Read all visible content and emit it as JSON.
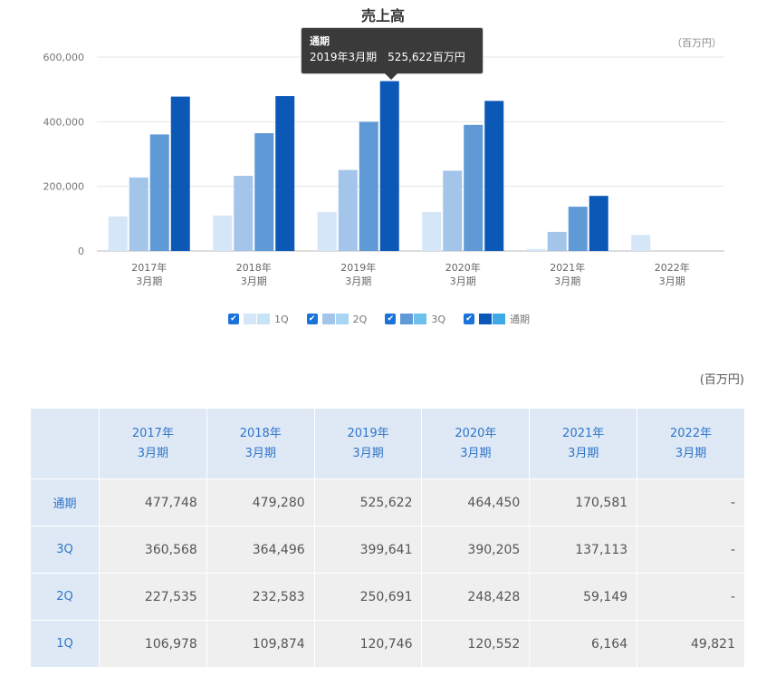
{
  "chart_data": {
    "type": "bar",
    "title": "売上高",
    "unit": "（百万円）",
    "categories": [
      [
        "2017年",
        "3月期"
      ],
      [
        "2018年",
        "3月期"
      ],
      [
        "2019年",
        "3月期"
      ],
      [
        "2020年",
        "3月期"
      ],
      [
        "2021年",
        "3月期"
      ],
      [
        "2022年",
        "3月期"
      ]
    ],
    "y_ticks": [
      "0",
      "200,000",
      "400,000",
      "600,000"
    ],
    "ylim": [
      0,
      600000
    ],
    "grid": true,
    "series": [
      {
        "name": "1Q",
        "values": [
          106978,
          109874,
          120746,
          120552,
          6164,
          49821
        ],
        "color": "#d4e6f8"
      },
      {
        "name": "2Q",
        "values": [
          227535,
          232583,
          250691,
          248428,
          59149,
          null
        ],
        "color": "#a3c5ea"
      },
      {
        "name": "3Q",
        "values": [
          360568,
          364496,
          399641,
          390205,
          137113,
          null
        ],
        "color": "#5f9ad6"
      },
      {
        "name": "通期",
        "values": [
          477748,
          479280,
          525622,
          464450,
          170581,
          null
        ],
        "color": "#0b58b6"
      }
    ],
    "tooltip": {
      "title": "通期",
      "body": "2019年3月期　525,622百万円"
    }
  },
  "legend": [
    {
      "label": "1Q",
      "check": "✔",
      "swatches": [
        "#d4e6f8",
        "#c7e4f7"
      ]
    },
    {
      "label": "2Q",
      "check": "✔",
      "swatches": [
        "#a3c5ea",
        "#a8d6f2"
      ]
    },
    {
      "label": "3Q",
      "check": "✔",
      "swatches": [
        "#5f9ad6",
        "#6ec0ec"
      ]
    },
    {
      "label": "通期",
      "check": "✔",
      "swatches": [
        "#0b58b6",
        "#3fa8e6"
      ]
    }
  ],
  "table": {
    "unit": "(百万円)",
    "headers": [
      [
        "2017年",
        "3月期"
      ],
      [
        "2018年",
        "3月期"
      ],
      [
        "2019年",
        "3月期"
      ],
      [
        "2020年",
        "3月期"
      ],
      [
        "2021年",
        "3月期"
      ],
      [
        "2022年",
        "3月期"
      ]
    ],
    "rows": [
      {
        "label": "通期",
        "values": [
          "477,748",
          "479,280",
          "525,622",
          "464,450",
          "170,581",
          "-"
        ]
      },
      {
        "label": "3Q",
        "values": [
          "360,568",
          "364,496",
          "399,641",
          "390,205",
          "137,113",
          "-"
        ]
      },
      {
        "label": "2Q",
        "values": [
          "227,535",
          "232,583",
          "250,691",
          "248,428",
          "59,149",
          "-"
        ]
      },
      {
        "label": "1Q",
        "values": [
          "106,978",
          "109,874",
          "120,746",
          "120,552",
          "6,164",
          "49,821"
        ]
      }
    ]
  }
}
